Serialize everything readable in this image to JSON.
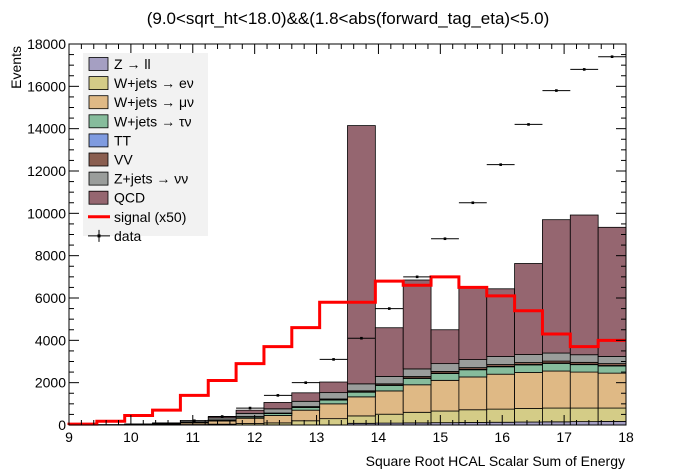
{
  "chart_data": {
    "type": "bar",
    "title": "(9.0<sqrt_ht<18.0)&&(1.8<abs(forward_tag_eta)<5.0)",
    "xlabel": "Square Root HCAL Scalar Sum of Energy",
    "ylabel": "Events",
    "xlim": [
      9,
      18
    ],
    "ylim": [
      0,
      18000
    ],
    "x_ticks": [
      "9",
      "10",
      "11",
      "12",
      "13",
      "14",
      "15",
      "16",
      "17",
      "18"
    ],
    "y_ticks": [
      "0",
      "2000",
      "4000",
      "6000",
      "8000",
      "10000",
      "12000",
      "14000",
      "16000",
      "18000"
    ],
    "bin_edges": [
      9.0,
      9.45,
      9.9,
      10.35,
      10.8,
      11.25,
      11.7,
      12.15,
      12.6,
      13.05,
      13.5,
      13.95,
      14.4,
      14.85,
      15.3,
      15.75,
      16.2,
      16.65,
      17.1,
      17.55,
      18.0
    ],
    "legend_position": "top-left",
    "grid": false,
    "stack": [
      {
        "name": "Z → ll",
        "color": "#a59fc2",
        "values": [
          0,
          0,
          0,
          0,
          0,
          0,
          0,
          0,
          0,
          0,
          80,
          90,
          100,
          110,
          120,
          130,
          140,
          150,
          160,
          170
        ]
      },
      {
        "name": "W+jets → eν",
        "color": "#d4cc87",
        "values": [
          0,
          0,
          5,
          10,
          20,
          40,
          70,
          100,
          200,
          300,
          350,
          420,
          500,
          550,
          600,
          620,
          640,
          650,
          640,
          630
        ]
      },
      {
        "name": "W+jets → μν",
        "color": "#dfb985",
        "values": [
          5,
          10,
          20,
          40,
          80,
          150,
          250,
          350,
          500,
          700,
          900,
          1100,
          1300,
          1450,
          1550,
          1650,
          1700,
          1750,
          1700,
          1650
        ]
      },
      {
        "name": "W+jets → τν",
        "color": "#86bc9c",
        "values": [
          0,
          0,
          5,
          10,
          20,
          40,
          60,
          90,
          130,
          180,
          220,
          260,
          300,
          320,
          340,
          350,
          360,
          360,
          350,
          340
        ]
      },
      {
        "name": "TT",
        "color": "#7f9be0",
        "values": [
          0,
          0,
          0,
          0,
          0,
          0,
          5,
          5,
          10,
          10,
          15,
          15,
          20,
          20,
          20,
          20,
          20,
          20,
          20,
          20
        ]
      },
      {
        "name": "VV",
        "color": "#8a5e50",
        "values": [
          0,
          0,
          0,
          0,
          5,
          10,
          15,
          20,
          30,
          40,
          50,
          60,
          70,
          80,
          80,
          85,
          90,
          90,
          90,
          90
        ]
      },
      {
        "name": "Z+jets → νν",
        "color": "#9a9d9b",
        "values": [
          5,
          10,
          15,
          30,
          60,
          100,
          150,
          200,
          250,
          300,
          330,
          350,
          360,
          370,
          380,
          380,
          380,
          380,
          360,
          340
        ]
      },
      {
        "name": "QCD",
        "color": "#956670",
        "values": [
          0,
          0,
          5,
          10,
          20,
          60,
          150,
          300,
          400,
          500,
          12200,
          2300,
          4200,
          1600,
          3400,
          3200,
          4300,
          6300,
          6600,
          6100
        ]
      }
    ],
    "signal": {
      "name": "signal (x50)",
      "color": "#ff0000",
      "values": [
        40,
        180,
        450,
        700,
        1400,
        2100,
        2900,
        3700,
        4600,
        5800,
        5800,
        6800,
        6600,
        7000,
        6500,
        6100,
        5400,
        4300,
        3700,
        4000
      ]
    },
    "data": {
      "name": "data",
      "values": [
        0,
        0,
        0,
        0,
        200,
        400,
        800,
        1400,
        2000,
        3100,
        4100,
        5500,
        7000,
        8800,
        10500,
        12300,
        14200,
        15800,
        16800,
        17400
      ]
    }
  }
}
